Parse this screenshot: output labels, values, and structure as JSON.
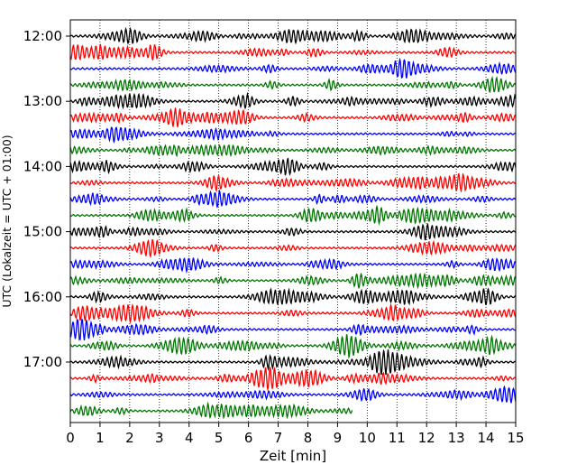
{
  "chart_data": {
    "type": "line",
    "title": "",
    "xlabel": "Zeit  [min]",
    "ylabel": "UTC (Lokalzeit = UTC + 01:00)",
    "xlim": [
      0,
      15
    ],
    "xticks": [
      0,
      1,
      2,
      3,
      4,
      5,
      6,
      7,
      8,
      9,
      10,
      11,
      12,
      13,
      14,
      15
    ],
    "ytick_labels": [
      "12:00",
      "13:00",
      "14:00",
      "15:00",
      "16:00",
      "17:00"
    ],
    "trace_interval_minutes": 15,
    "start_time": "12:00",
    "trace_count": 24,
    "last_trace_end_minute": 9.5,
    "trace_colors": [
      "#000000",
      "#ff0000",
      "#0000ff",
      "#007700"
    ],
    "grid": "vertical dotted lines at each minute",
    "description": "Seismogram helicorder: each row is 15 minutes of waveform amplitude, rows cycle black/red/blue/green"
  }
}
